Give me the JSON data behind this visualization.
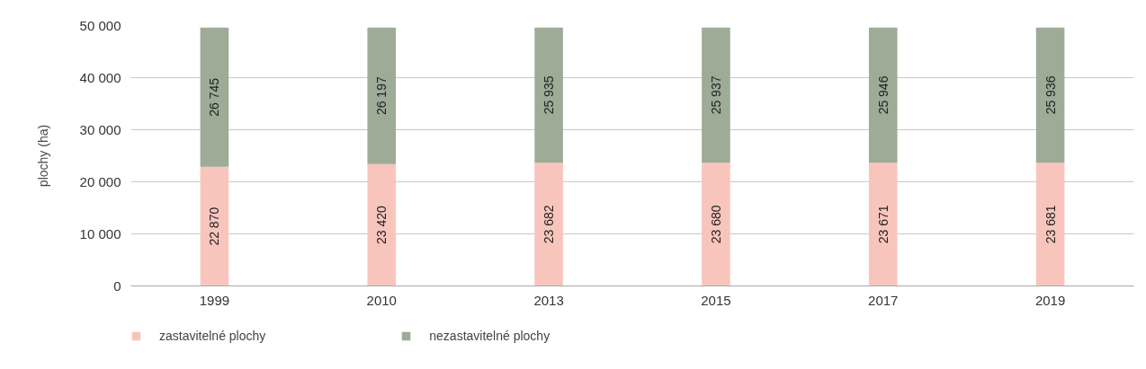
{
  "chart_data": {
    "type": "bar",
    "stacked": true,
    "ylabel": "plochy (ha)",
    "categories": [
      "1999",
      "2010",
      "2013",
      "2015",
      "2017",
      "2019"
    ],
    "series": [
      {
        "name": "zastavitelné plochy",
        "color": "#f8c5bd",
        "values": [
          22870,
          23420,
          23682,
          23680,
          23671,
          23681
        ]
      },
      {
        "name": "nezastavitelné plochy",
        "color": "#9dab97",
        "values": [
          26745,
          26197,
          25935,
          25937,
          25946,
          25936
        ]
      }
    ],
    "ylim": [
      0,
      50000
    ],
    "yticks": [
      {
        "value": 0,
        "label": "0"
      },
      {
        "value": 10000,
        "label": "10 000"
      },
      {
        "value": 20000,
        "label": "20 000"
      },
      {
        "value": 30000,
        "label": "30 000"
      },
      {
        "value": 40000,
        "label": "40 000"
      },
      {
        "value": 50000,
        "label": "50 000"
      }
    ],
    "grid": "y",
    "legend": "bottom left",
    "data_labels": true
  }
}
